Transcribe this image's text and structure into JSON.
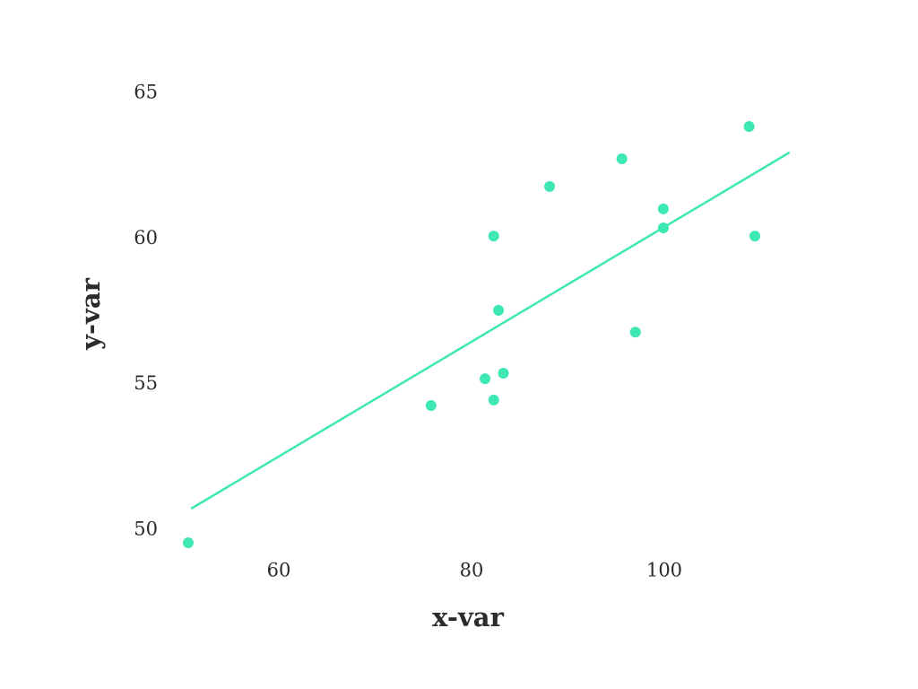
{
  "chart_data": {
    "type": "scatter",
    "x_label": "x-var",
    "y_label": "y-var",
    "points": {
      "color": "#3de8b4",
      "x": [
        50.6,
        75.8,
        81.4,
        82.3,
        83.3,
        82.8,
        82.3,
        88.1,
        95.6,
        97.0,
        99.9,
        99.9,
        108.8,
        109.4
      ],
      "y": [
        49.57,
        54.28,
        55.2,
        54.47,
        55.39,
        57.55,
        60.1,
        61.8,
        62.75,
        56.8,
        61.03,
        60.38,
        63.86,
        60.1
      ]
    },
    "trend": {
      "color": "#3de8b4",
      "x": [
        50.9,
        113.0
      ],
      "y": [
        50.74,
        62.97
      ]
    },
    "xlim": [
      50,
      114
    ],
    "ylim": [
      49,
      66
    ],
    "xticks": [
      60,
      80,
      100
    ],
    "yticks": [
      50,
      55,
      60,
      65
    ],
    "grid": false
  }
}
